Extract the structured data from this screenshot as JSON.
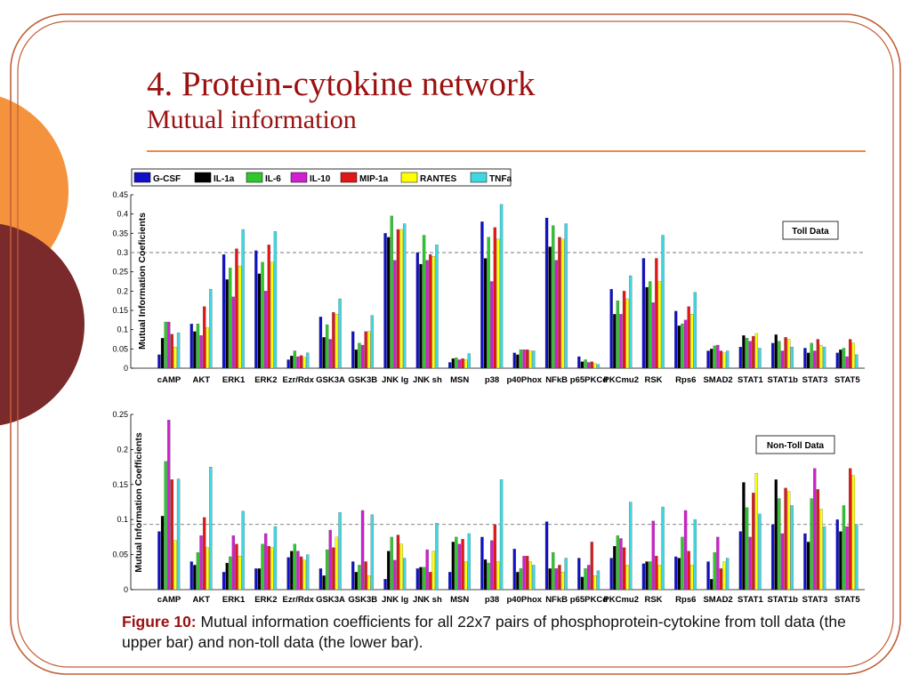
{
  "slide": {
    "title": "4. Protein-cytokine network",
    "subtitle": "Mutual information"
  },
  "caption": {
    "lead": "Figure 10:",
    "text": " Mutual information coefficients for all 22x7 pairs of phosphoprotein-cytokine from toll data (the upper bar) and non-toll data (the lower bar)."
  },
  "colors": {
    "title": "#9b1010",
    "frame": "#c0603a",
    "rule": "#e8884a",
    "circle_orange": "#f5923e",
    "circle_dark": "#7a2a2a"
  },
  "chart_data": [
    {
      "type": "bar",
      "box_label": "Toll Data",
      "ylabel": "Mutual Information Coeficients",
      "ylim": [
        0,
        0.45
      ],
      "yticks": [
        "0",
        "0.05",
        "0.1",
        "0.15",
        "0.2",
        "0.25",
        "0.3",
        "0.35",
        "0.4",
        "0.45"
      ],
      "reference_line": 0.3,
      "legend_position": "top-left",
      "categories": [
        "cAMP",
        "AKT",
        "ERK1",
        "ERK2",
        "Ezr/Rdx",
        "GSK3A",
        "GSK3B",
        "JNK lg",
        "JNK sh",
        "MSN",
        "p38",
        "p40Phox",
        "NFkB",
        "p65PKCd",
        "PKCmu2",
        "RSK",
        "Rps6",
        "SMAD2",
        "STAT1",
        "STAT1b",
        "STAT3",
        "STAT5"
      ],
      "series": [
        {
          "name": "G-CSF",
          "color": "#1010c8",
          "values": [
            0.035,
            0.115,
            0.295,
            0.305,
            0.022,
            0.133,
            0.095,
            0.35,
            0.3,
            0.015,
            0.38,
            0.04,
            0.39,
            0.03,
            0.205,
            0.285,
            0.148,
            0.045,
            0.055,
            0.065,
            0.052,
            0.04
          ]
        },
        {
          "name": "IL-1a",
          "color": "#000000",
          "values": [
            0.078,
            0.095,
            0.23,
            0.245,
            0.032,
            0.08,
            0.048,
            0.34,
            0.27,
            0.025,
            0.285,
            0.035,
            0.315,
            0.017,
            0.14,
            0.21,
            0.11,
            0.05,
            0.085,
            0.087,
            0.04,
            0.048
          ]
        },
        {
          "name": "IL-6",
          "color": "#2ec82e",
          "values": [
            0.12,
            0.115,
            0.26,
            0.275,
            0.045,
            0.113,
            0.065,
            0.395,
            0.345,
            0.027,
            0.34,
            0.048,
            0.37,
            0.022,
            0.175,
            0.225,
            0.115,
            0.058,
            0.078,
            0.07,
            0.065,
            0.052
          ]
        },
        {
          "name": "IL-10",
          "color": "#d020d0",
          "values": [
            0.12,
            0.085,
            0.185,
            0.2,
            0.03,
            0.075,
            0.06,
            0.28,
            0.28,
            0.022,
            0.225,
            0.048,
            0.28,
            0.015,
            0.14,
            0.17,
            0.125,
            0.06,
            0.07,
            0.045,
            0.045,
            0.03
          ]
        },
        {
          "name": "MIP-1a",
          "color": "#e01818",
          "values": [
            0.088,
            0.16,
            0.31,
            0.32,
            0.033,
            0.145,
            0.095,
            0.36,
            0.295,
            0.025,
            0.365,
            0.048,
            0.34,
            0.017,
            0.2,
            0.285,
            0.16,
            0.045,
            0.083,
            0.08,
            0.075,
            0.075
          ]
        },
        {
          "name": "RANTES",
          "color": "#ffff00",
          "values": [
            0.055,
            0.105,
            0.265,
            0.275,
            0.028,
            0.14,
            0.095,
            0.36,
            0.29,
            0.022,
            0.335,
            0.045,
            0.335,
            0.012,
            0.18,
            0.225,
            0.14,
            0.04,
            0.09,
            0.075,
            0.06,
            0.065
          ]
        },
        {
          "name": "TNFa",
          "color": "#40d8e0",
          "values": [
            0.092,
            0.205,
            0.36,
            0.355,
            0.04,
            0.18,
            0.137,
            0.375,
            0.32,
            0.038,
            0.425,
            0.045,
            0.375,
            0.01,
            0.24,
            0.345,
            0.197,
            0.045,
            0.052,
            0.055,
            0.055,
            0.035
          ]
        }
      ]
    },
    {
      "type": "bar",
      "box_label": "Non-Toll Data",
      "ylabel": "Mutual Information Coefficients",
      "ylim": [
        0,
        0.25
      ],
      "yticks": [
        "0",
        "0.05",
        "0.1",
        "0.15",
        "0.2",
        "0.25"
      ],
      "reference_line": 0.093,
      "categories": [
        "cAMP",
        "AKT",
        "ERK1",
        "ERK2",
        "Ezr/Rdx",
        "GSK3A",
        "GSK3B",
        "JNK lg",
        "JNK sh",
        "MSN",
        "p38",
        "p40Phox",
        "NFkB",
        "p65PKCd",
        "PKCmu2",
        "RSK",
        "Rps6",
        "SMAD2",
        "STAT1",
        "STAT1b",
        "STAT3",
        "STAT5"
      ],
      "series": [
        {
          "name": "G-CSF",
          "color": "#1010c8",
          "values": [
            0.083,
            0.04,
            0.025,
            0.03,
            0.046,
            0.03,
            0.04,
            0.015,
            0.03,
            0.025,
            0.075,
            0.058,
            0.097,
            0.045,
            0.045,
            0.037,
            0.047,
            0.04,
            0.083,
            0.093,
            0.08,
            0.1
          ]
        },
        {
          "name": "IL-1a",
          "color": "#000000",
          "values": [
            0.105,
            0.035,
            0.038,
            0.03,
            0.055,
            0.02,
            0.025,
            0.055,
            0.032,
            0.068,
            0.043,
            0.025,
            0.03,
            0.018,
            0.062,
            0.04,
            0.045,
            0.015,
            0.153,
            0.157,
            0.068,
            0.083
          ]
        },
        {
          "name": "IL-6",
          "color": "#2ec82e",
          "values": [
            0.183,
            0.053,
            0.047,
            0.065,
            0.065,
            0.057,
            0.035,
            0.075,
            0.032,
            0.075,
            0.038,
            0.03,
            0.053,
            0.03,
            0.077,
            0.04,
            0.075,
            0.053,
            0.117,
            0.13,
            0.13,
            0.12
          ]
        },
        {
          "name": "IL-10",
          "color": "#d020d0",
          "values": [
            0.242,
            0.077,
            0.077,
            0.08,
            0.055,
            0.085,
            0.113,
            0.042,
            0.057,
            0.065,
            0.07,
            0.048,
            0.03,
            0.035,
            0.073,
            0.098,
            0.113,
            0.075,
            0.075,
            0.08,
            0.173,
            0.09
          ]
        },
        {
          "name": "MIP-1a",
          "color": "#e01818",
          "values": [
            0.157,
            0.103,
            0.065,
            0.062,
            0.047,
            0.06,
            0.04,
            0.078,
            0.025,
            0.072,
            0.093,
            0.048,
            0.035,
            0.068,
            0.06,
            0.048,
            0.055,
            0.03,
            0.138,
            0.145,
            0.143,
            0.173
          ]
        },
        {
          "name": "RANTES",
          "color": "#ffff00",
          "values": [
            0.07,
            0.06,
            0.048,
            0.06,
            0.042,
            0.075,
            0.02,
            0.065,
            0.055,
            0.04,
            0.04,
            0.04,
            0.025,
            0.02,
            0.035,
            0.035,
            0.035,
            0.04,
            0.166,
            0.14,
            0.115,
            0.163
          ]
        },
        {
          "name": "TNFa",
          "color": "#40d8e0",
          "values": [
            0.158,
            0.175,
            0.112,
            0.09,
            0.05,
            0.11,
            0.107,
            0.045,
            0.095,
            0.08,
            0.157,
            0.035,
            0.045,
            0.027,
            0.125,
            0.118,
            0.1,
            0.045,
            0.108,
            0.12,
            0.09,
            0.093
          ]
        }
      ]
    }
  ]
}
